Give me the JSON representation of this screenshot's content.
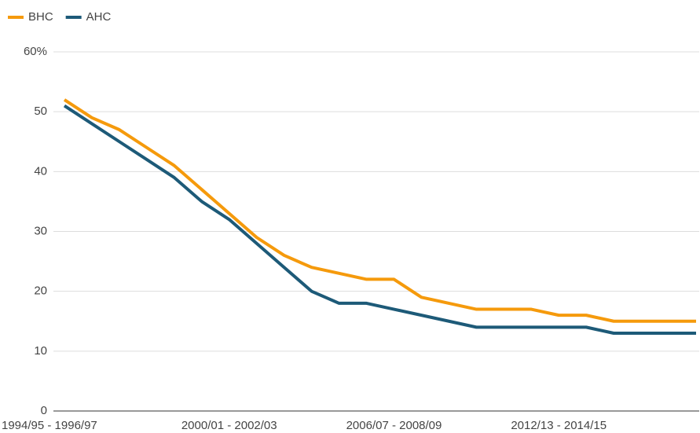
{
  "chart_data": {
    "type": "line",
    "categories": [
      "1994/95 - 1996/97",
      null,
      null,
      null,
      null,
      null,
      "2000/01 - 2002/03",
      null,
      null,
      null,
      null,
      null,
      "2006/07 - 2008/09",
      null,
      null,
      null,
      null,
      null,
      "2012/13 - 2014/15",
      null,
      null,
      null,
      null,
      null
    ],
    "series": [
      {
        "name": "BHC",
        "color": "#f59a0c",
        "values": [
          52,
          49,
          47,
          44,
          41,
          37,
          33,
          29,
          26,
          24,
          23,
          22,
          22,
          19,
          18,
          17,
          17,
          17,
          16,
          16,
          15,
          15,
          15,
          15
        ]
      },
      {
        "name": "AHC",
        "color": "#1d5a78",
        "values": [
          51,
          48,
          45,
          42,
          39,
          35,
          32,
          28,
          24,
          20,
          18,
          18,
          17,
          16,
          15,
          14,
          14,
          14,
          14,
          14,
          13,
          13,
          13,
          13
        ]
      }
    ],
    "ylim": [
      0,
      60
    ],
    "yticks": [
      0,
      10,
      20,
      30,
      40,
      {
        "value": 60,
        "label": "60%"
      },
      50
    ],
    "grid": true,
    "legend": "top-left"
  }
}
